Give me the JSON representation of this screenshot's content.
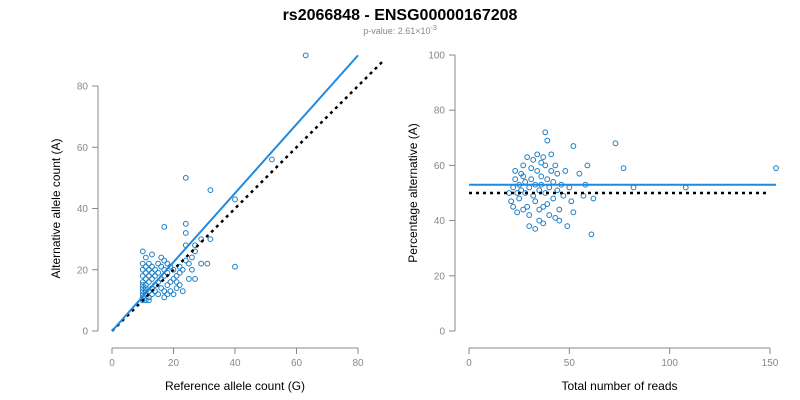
{
  "header": {
    "title": "rs2066848 - ENSG00000167208",
    "pvalue_prefix": "p-value: 2.61×10",
    "pvalue_exponent": "-3"
  },
  "colors": {
    "points": "#1a7fc9",
    "fit_line": "#1f8ae0",
    "reference_line": "#000000"
  },
  "chart_data": [
    {
      "type": "scatter",
      "xlabel": "Reference allele count (G)",
      "ylabel": "Alternative allele count (A)",
      "xlim": [
        0,
        80
      ],
      "ylim": [
        0,
        80
      ],
      "xticks": [
        0,
        20,
        40,
        60,
        80
      ],
      "yticks": [
        0,
        20,
        40,
        60,
        80
      ],
      "points": [
        [
          10,
          10
        ],
        [
          10,
          11
        ],
        [
          10,
          12
        ],
        [
          10,
          13
        ],
        [
          10,
          14
        ],
        [
          10,
          15
        ],
        [
          10,
          16
        ],
        [
          10,
          18
        ],
        [
          10,
          20
        ],
        [
          10,
          22
        ],
        [
          10,
          26
        ],
        [
          11,
          10
        ],
        [
          11,
          12
        ],
        [
          11,
          13
        ],
        [
          11,
          14
        ],
        [
          11,
          15
        ],
        [
          11,
          17
        ],
        [
          11,
          19
        ],
        [
          11,
          21
        ],
        [
          11,
          24
        ],
        [
          12,
          10
        ],
        [
          12,
          11
        ],
        [
          12,
          13
        ],
        [
          12,
          16
        ],
        [
          12,
          18
        ],
        [
          12,
          20
        ],
        [
          12,
          22
        ],
        [
          13,
          12
        ],
        [
          13,
          14
        ],
        [
          13,
          17
        ],
        [
          13,
          19
        ],
        [
          13,
          21
        ],
        [
          13,
          25
        ],
        [
          14,
          13
        ],
        [
          14,
          15
        ],
        [
          14,
          18
        ],
        [
          14,
          20
        ],
        [
          15,
          12
        ],
        [
          15,
          16
        ],
        [
          15,
          19
        ],
        [
          15,
          22
        ],
        [
          16,
          14
        ],
        [
          16,
          17
        ],
        [
          16,
          21
        ],
        [
          16,
          24
        ],
        [
          17,
          11
        ],
        [
          17,
          13
        ],
        [
          17,
          18
        ],
        [
          17,
          20
        ],
        [
          17,
          23
        ],
        [
          17,
          34
        ],
        [
          18,
          12
        ],
        [
          18,
          15
        ],
        [
          18,
          19
        ],
        [
          18,
          22
        ],
        [
          19,
          13
        ],
        [
          19,
          16
        ],
        [
          19,
          21
        ],
        [
          20,
          12
        ],
        [
          20,
          17
        ],
        [
          20,
          20
        ],
        [
          21,
          14
        ],
        [
          21,
          16
        ],
        [
          21,
          18
        ],
        [
          22,
          15
        ],
        [
          22,
          19
        ],
        [
          22,
          21
        ],
        [
          23,
          13
        ],
        [
          23,
          20
        ],
        [
          24,
          23
        ],
        [
          24,
          28
        ],
        [
          24,
          32
        ],
        [
          24,
          35
        ],
        [
          24,
          50
        ],
        [
          25,
          17
        ],
        [
          25,
          22
        ],
        [
          26,
          20
        ],
        [
          26,
          24
        ],
        [
          27,
          17
        ],
        [
          27,
          26
        ],
        [
          27,
          28
        ],
        [
          29,
          22
        ],
        [
          29,
          30
        ],
        [
          31,
          22
        ],
        [
          32,
          30
        ],
        [
          32,
          46
        ],
        [
          40,
          43
        ],
        [
          40,
          21
        ],
        [
          52,
          56
        ],
        [
          63,
          90
        ]
      ],
      "fit_line": {
        "x": [
          0,
          80
        ],
        "y": [
          0,
          90
        ]
      },
      "reference_line": {
        "x": [
          0,
          88
        ],
        "y": [
          0,
          88
        ]
      }
    },
    {
      "type": "scatter",
      "xlabel": "Total number of reads",
      "ylabel": "Percentage alternative (A)",
      "xlim": [
        0,
        150
      ],
      "ylim": [
        0,
        100
      ],
      "xticks": [
        0,
        50,
        100,
        150
      ],
      "yticks": [
        0,
        20,
        40,
        60,
        80,
        100
      ],
      "points": [
        [
          20,
          50
        ],
        [
          21,
          47
        ],
        [
          22,
          52
        ],
        [
          22,
          45
        ],
        [
          23,
          55
        ],
        [
          23,
          58
        ],
        [
          24,
          43
        ],
        [
          24,
          50
        ],
        [
          25,
          53
        ],
        [
          25,
          48
        ],
        [
          26,
          57
        ],
        [
          26,
          51
        ],
        [
          27,
          60
        ],
        [
          27,
          56
        ],
        [
          27,
          44
        ],
        [
          28,
          54
        ],
        [
          28,
          50
        ],
        [
          29,
          63
        ],
        [
          29,
          45
        ],
        [
          30,
          52
        ],
        [
          30,
          42
        ],
        [
          30,
          38
        ],
        [
          31,
          59
        ],
        [
          31,
          55
        ],
        [
          32,
          62
        ],
        [
          32,
          49
        ],
        [
          33,
          53
        ],
        [
          33,
          47
        ],
        [
          33,
          37
        ],
        [
          34,
          64
        ],
        [
          34,
          58
        ],
        [
          35,
          51
        ],
        [
          35,
          44
        ],
        [
          35,
          40
        ],
        [
          36,
          61
        ],
        [
          36,
          56
        ],
        [
          36,
          53
        ],
        [
          37,
          63
        ],
        [
          37,
          45
        ],
        [
          37,
          39
        ],
        [
          38,
          72
        ],
        [
          38,
          60
        ],
        [
          38,
          50
        ],
        [
          39,
          69
        ],
        [
          39,
          55
        ],
        [
          39,
          46
        ],
        [
          40,
          52
        ],
        [
          40,
          42
        ],
        [
          41,
          64
        ],
        [
          41,
          58
        ],
        [
          42,
          54
        ],
        [
          42,
          48
        ],
        [
          43,
          60
        ],
        [
          43,
          41
        ],
        [
          44,
          57
        ],
        [
          44,
          51
        ],
        [
          45,
          44
        ],
        [
          45,
          40
        ],
        [
          46,
          53
        ],
        [
          47,
          49
        ],
        [
          48,
          58
        ],
        [
          49,
          38
        ],
        [
          50,
          52
        ],
        [
          51,
          47
        ],
        [
          52,
          67
        ],
        [
          52,
          43
        ],
        [
          55,
          57
        ],
        [
          57,
          49
        ],
        [
          58,
          53
        ],
        [
          59,
          60
        ],
        [
          62,
          48
        ],
        [
          61,
          35
        ],
        [
          73,
          68
        ],
        [
          77,
          59
        ],
        [
          82,
          52
        ],
        [
          108,
          52
        ],
        [
          153,
          59
        ]
      ],
      "fit_line": {
        "x": [
          0,
          153
        ],
        "y": [
          53,
          53
        ]
      },
      "reference_line": {
        "x": [
          0,
          150
        ],
        "y": [
          50,
          50
        ]
      }
    }
  ]
}
